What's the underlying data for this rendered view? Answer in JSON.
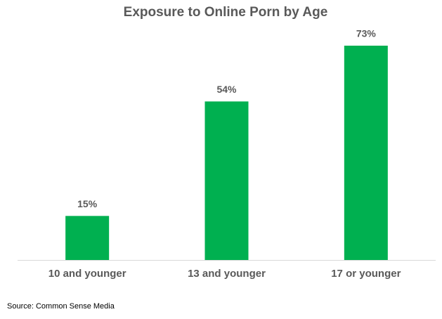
{
  "chart_data": {
    "type": "bar",
    "title": "Exposure to Online Porn by Age",
    "categories": [
      "10 and younger",
      "13 and younger",
      "17 or younger"
    ],
    "values": [
      15,
      54,
      73
    ],
    "value_labels": [
      "15%",
      "54%",
      "73%"
    ],
    "color": "#00b050",
    "source": "Source: Common Sense Media"
  }
}
